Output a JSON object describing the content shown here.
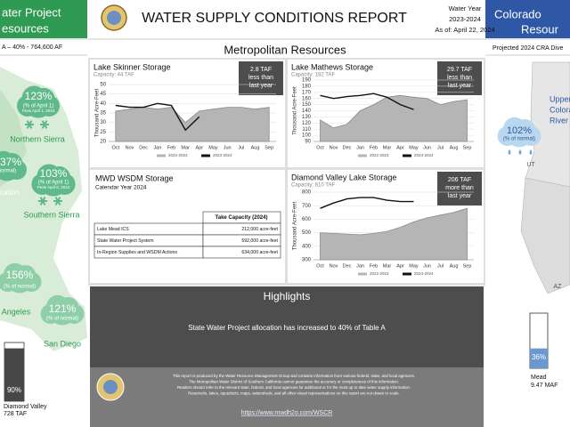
{
  "header": {
    "title": "WATER SUPPLY CONDITIONS REPORT",
    "water_year_label": "Water Year",
    "water_year": "2023-2024",
    "as_of": "As of: April 22, 2024"
  },
  "left_panel": {
    "title_line1": "ater Project",
    "title_line2": "esources",
    "allocation": "A – 40% - 764,600 AF",
    "northern_sierra": {
      "value": "123%",
      "unit": "(% of April 1)",
      "peak": "Peak April 1, 2024",
      "name": "Northern Sierra"
    },
    "partial_station": {
      "value": "37%",
      "unit": "normal)"
    },
    "location_label": "cation",
    "southern_sierra": {
      "value": "103%",
      "unit": "(% of April 1)",
      "peak": "Peak April 6, 2024",
      "name": "Southern Sierra"
    },
    "los_angeles": {
      "value": "156%",
      "unit": "(% of normal)",
      "name": "Angeles"
    },
    "san_diego": {
      "value": "121%",
      "unit": "(% of normal)",
      "name": "San Diego"
    },
    "diamond_valley": {
      "percent": {
        "value": 90,
        "label": "90%"
      },
      "name": "Diamond Valley",
      "volume": "728 TAF"
    }
  },
  "right_panel": {
    "title_line1": "Colorado",
    "title_line2": "Resour",
    "projection": "Projected 2024 CRA Dive",
    "upper_label": [
      "Upper",
      "Colora",
      "River"
    ],
    "upper_value": "102%",
    "upper_unit": "(% of normal)",
    "ut": "UT",
    "az": "AZ",
    "mead": {
      "percent": {
        "value": 36,
        "label": "36%"
      },
      "name": "Mead",
      "volume": "9.47 MAF"
    }
  },
  "section_title": "Metropolitan Resources",
  "chart_data": [
    {
      "type": "line",
      "title": "Lake Skinner Storage",
      "subtitle": "Capacity: 44 TAF",
      "note": [
        "2.8 TAF",
        "less than",
        "last year"
      ],
      "y_label": "Thousand Acre-Feet",
      "categories": [
        "Oct",
        "Nov",
        "Dec",
        "Jan",
        "Feb",
        "Mar",
        "Apr",
        "May",
        "Jun",
        "Jul",
        "Aug",
        "Sep"
      ],
      "series": [
        {
          "name": "2022-2023",
          "color": "#b5b5b5",
          "style": "area",
          "values": [
            36,
            37,
            38,
            37,
            38,
            30,
            36,
            37,
            38,
            38,
            37,
            38
          ]
        },
        {
          "name": "2023-2024",
          "color": "#111111",
          "style": "line",
          "values": [
            39,
            38,
            38,
            40,
            39,
            26,
            33,
            null,
            null,
            null,
            null,
            null
          ]
        }
      ],
      "ylim": [
        20,
        50
      ],
      "yticks": [
        20,
        25,
        30,
        35,
        40,
        45,
        50
      ],
      "grid": true
    },
    {
      "type": "line",
      "title": "Lake Mathews Storage",
      "subtitle": "Capacity: 182 TAF",
      "note": [
        "29.7 TAF",
        "less than",
        "last year"
      ],
      "y_label": "Thousand Acre-Feet",
      "categories": [
        "Oct",
        "Nov",
        "Dec",
        "Jan",
        "Feb",
        "Mar",
        "Apr",
        "May",
        "Jun",
        "Jul",
        "Aug",
        "Sep"
      ],
      "series": [
        {
          "name": "2022-2023",
          "color": "#b5b5b5",
          "style": "area",
          "values": [
            125,
            112,
            118,
            140,
            150,
            162,
            165,
            162,
            160,
            150,
            155,
            158
          ]
        },
        {
          "name": "2023-2024",
          "color": "#111111",
          "style": "line",
          "values": [
            165,
            160,
            163,
            165,
            168,
            162,
            150,
            142,
            null,
            null,
            null,
            null
          ]
        }
      ],
      "ylim": [
        90,
        190
      ],
      "yticks": [
        90,
        100,
        110,
        120,
        130,
        140,
        150,
        160,
        170,
        180,
        190
      ],
      "grid": true
    },
    {
      "type": "line",
      "title": "Diamond Valley Lake Storage",
      "subtitle": "Capacity: 810 TAF",
      "note": [
        "206 TAF",
        "more than",
        "last year"
      ],
      "y_label": "Thousand Acre-Feet",
      "categories": [
        "Oct",
        "Nov",
        "Dec",
        "Jan",
        "Feb",
        "Mar",
        "Apr",
        "May",
        "Jun",
        "Jul",
        "Aug",
        "Sep"
      ],
      "series": [
        {
          "name": "2022-2023",
          "color": "#b5b5b5",
          "style": "area",
          "values": [
            500,
            495,
            490,
            485,
            495,
            510,
            540,
            580,
            610,
            630,
            650,
            680
          ]
        },
        {
          "name": "2023-2024",
          "color": "#111111",
          "style": "line",
          "values": [
            680,
            720,
            750,
            760,
            760,
            740,
            730,
            730,
            null,
            null,
            null,
            null
          ]
        }
      ],
      "ylim": [
        300,
        800
      ],
      "yticks": [
        300,
        400,
        500,
        600,
        700,
        800
      ],
      "grid": true
    }
  ],
  "wsdm": {
    "title": "MWD WSDM Storage",
    "subtitle": "Calendar Year 2024",
    "column_header": "Take Capacity (2024)",
    "rows": [
      [
        "Lake Mead ICS",
        "212,000 acre-feet"
      ],
      [
        "State Water Project System",
        "592,000 acre-feet"
      ],
      [
        "In-Region Supplies and WSDM Actions",
        "634,000 acre-feet"
      ]
    ]
  },
  "highlights": {
    "title": "Highlights",
    "items": [
      "State Water Project allocation has increased to 40% of Table A"
    ]
  },
  "footer": {
    "disclaimer": [
      "This report is produced by the Water Resource Management Group and contains information from various federal, state, and local agencies.",
      "The Metropolitan Water District of Southern California cannot guarantee the accuracy or completeness of this information.",
      "Readers should refer to the relevant state, federal, and local agencies for additional or for the most up to date water supply information.",
      "Reservoirs, lakes, aqueducts, maps, watersheds, and all other visual representations on this report are not drawn to scale."
    ],
    "link": "https://www.mwdh2o.com/WSCR"
  }
}
